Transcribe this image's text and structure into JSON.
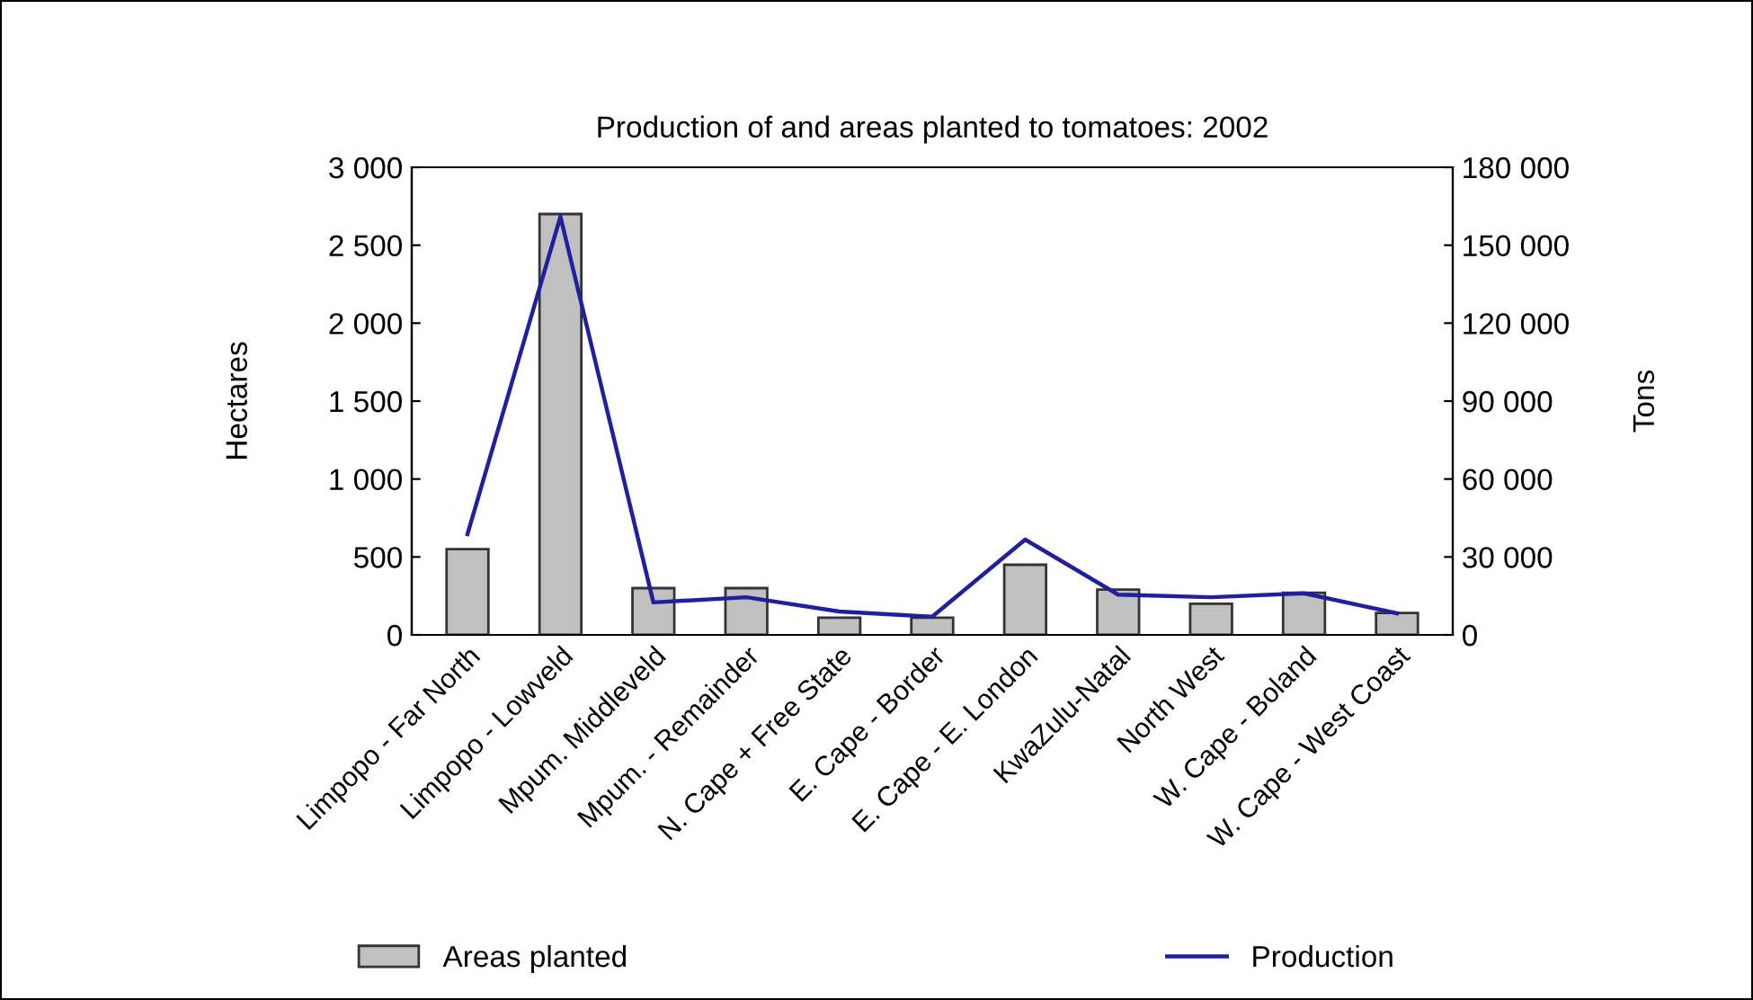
{
  "chart_data": {
    "type": "bar",
    "title": "Production of and areas planted to tomatoes: 2002",
    "ylabel": "Hectares",
    "y2label": "Tons",
    "categories": [
      "Limpopo - Far North",
      "Limpopo - Lowveld",
      "Mpum. Middleveld",
      "Mpum. - Remainder",
      "N. Cape + Free State",
      "E. Cape - Border",
      "E. Cape - E. London",
      "KwaZulu-Natal",
      "North West",
      "W. Cape - Boland",
      "W. Cape - West Coast"
    ],
    "series": [
      {
        "name": "Areas planted",
        "color": "#c0c0c0",
        "values": [
          550,
          2700,
          300,
          300,
          110,
          110,
          450,
          290,
          200,
          270,
          140
        ]
      },
      {
        "name": "Production",
        "type": "line",
        "axis": "y2",
        "color": "#1f1fa0",
        "values": [
          38800,
          161000,
          12500,
          14500,
          9000,
          7000,
          36700,
          15500,
          14500,
          16000,
          8300
        ]
      }
    ],
    "ylim": [
      0,
      3000
    ],
    "yticks": [
      {
        "value": 0,
        "label": "0"
      },
      {
        "value": 500,
        "label": "500"
      },
      {
        "value": 1000,
        "label": "1 000"
      },
      {
        "value": 1500,
        "label": "1 500"
      },
      {
        "value": 2000,
        "label": "2 000"
      },
      {
        "value": 2500,
        "label": "2 500"
      },
      {
        "value": 3000,
        "label": "3 000"
      }
    ],
    "y2lim": [
      0,
      180000
    ],
    "y2ticks": [
      {
        "value": 0,
        "label": "0"
      },
      {
        "value": 30000,
        "label": "30 000"
      },
      {
        "value": 60000,
        "label": "60 000"
      },
      {
        "value": 90000,
        "label": "90 000"
      },
      {
        "value": 120000,
        "label": "120 000"
      },
      {
        "value": 150000,
        "label": "150 000"
      },
      {
        "value": 180000,
        "label": "180 000"
      }
    ],
    "legend": "bottom",
    "grid": false
  }
}
